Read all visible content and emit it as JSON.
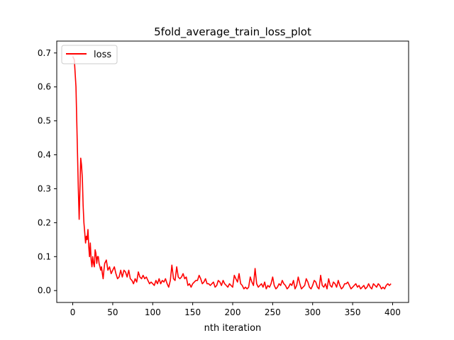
{
  "chart_data": {
    "type": "line",
    "title": "5fold_average_train_loss_plot",
    "xlabel": "nth iteration",
    "ylabel": "",
    "xlim": [
      -20,
      420
    ],
    "ylim": [
      -0.035,
      0.735
    ],
    "xticks": [
      0,
      50,
      100,
      150,
      200,
      250,
      300,
      350,
      400
    ],
    "yticks": [
      0.0,
      0.1,
      0.2,
      0.3,
      0.4,
      0.5,
      0.6,
      0.7
    ],
    "grid": false,
    "legend_position": "upper left",
    "series": [
      {
        "name": "loss",
        "color": "#ff0000",
        "x": [
          0,
          2,
          4,
          6,
          7,
          8,
          9,
          10,
          11,
          12,
          13,
          14,
          15,
          16,
          17,
          18,
          19,
          20,
          21,
          22,
          23,
          24,
          25,
          26,
          27,
          28,
          29,
          30,
          31,
          32,
          33,
          34,
          35,
          36,
          37,
          38,
          39,
          40,
          42,
          44,
          46,
          48,
          50,
          52,
          54,
          56,
          58,
          60,
          62,
          64,
          66,
          68,
          70,
          72,
          74,
          76,
          78,
          80,
          82,
          84,
          86,
          88,
          90,
          92,
          94,
          96,
          98,
          100,
          102,
          104,
          106,
          108,
          110,
          112,
          114,
          116,
          118,
          120,
          122,
          124,
          126,
          128,
          130,
          132,
          134,
          136,
          138,
          140,
          142,
          144,
          146,
          148,
          150,
          152,
          154,
          156,
          158,
          160,
          162,
          164,
          166,
          168,
          170,
          172,
          174,
          176,
          178,
          180,
          182,
          184,
          186,
          188,
          190,
          192,
          194,
          196,
          198,
          200,
          202,
          204,
          206,
          208,
          210,
          212,
          214,
          216,
          218,
          220,
          222,
          224,
          226,
          228,
          230,
          232,
          234,
          236,
          238,
          240,
          242,
          244,
          246,
          248,
          250,
          252,
          254,
          256,
          258,
          260,
          262,
          264,
          266,
          268,
          270,
          272,
          274,
          276,
          278,
          280,
          282,
          284,
          286,
          288,
          290,
          292,
          294,
          296,
          298,
          300,
          302,
          304,
          306,
          308,
          310,
          312,
          314,
          316,
          318,
          320,
          322,
          324,
          326,
          328,
          330,
          332,
          334,
          336,
          338,
          340,
          342,
          344,
          346,
          348,
          350,
          352,
          354,
          356,
          358,
          360,
          362,
          364,
          366,
          368,
          370,
          372,
          374,
          376,
          378,
          380,
          382,
          384,
          386,
          388,
          390,
          392,
          394,
          396,
          398
        ],
        "y": [
          0.69,
          0.68,
          0.6,
          0.4,
          0.3,
          0.21,
          0.3,
          0.39,
          0.37,
          0.33,
          0.25,
          0.2,
          0.17,
          0.14,
          0.16,
          0.15,
          0.18,
          0.13,
          0.1,
          0.14,
          0.09,
          0.07,
          0.1,
          0.08,
          0.07,
          0.12,
          0.11,
          0.08,
          0.1,
          0.1,
          0.08,
          0.07,
          0.06,
          0.07,
          0.05,
          0.035,
          0.06,
          0.08,
          0.09,
          0.06,
          0.07,
          0.05,
          0.06,
          0.07,
          0.05,
          0.035,
          0.04,
          0.06,
          0.04,
          0.06,
          0.055,
          0.04,
          0.06,
          0.035,
          0.03,
          0.02,
          0.035,
          0.025,
          0.055,
          0.04,
          0.035,
          0.045,
          0.035,
          0.04,
          0.03,
          0.02,
          0.025,
          0.02,
          0.015,
          0.03,
          0.02,
          0.035,
          0.02,
          0.03,
          0.025,
          0.035,
          0.02,
          0.01,
          0.03,
          0.075,
          0.035,
          0.03,
          0.07,
          0.04,
          0.035,
          0.04,
          0.05,
          0.035,
          0.04,
          0.015,
          0.02,
          0.01,
          0.02,
          0.025,
          0.03,
          0.03,
          0.045,
          0.035,
          0.02,
          0.025,
          0.035,
          0.02,
          0.02,
          0.015,
          0.02,
          0.025,
          0.01,
          0.015,
          0.03,
          0.025,
          0.015,
          0.03,
          0.02,
          0.015,
          0.01,
          0.02,
          0.015,
          0.01,
          0.045,
          0.035,
          0.025,
          0.05,
          0.02,
          0.015,
          0.005,
          0.01,
          0.005,
          0.01,
          0.04,
          0.025,
          0.015,
          0.065,
          0.02,
          0.01,
          0.015,
          0.02,
          0.01,
          0.025,
          0.005,
          0.015,
          0.01,
          0.02,
          0.04,
          0.015,
          0.005,
          0.01,
          0.02,
          0.015,
          0.03,
          0.02,
          0.015,
          0.005,
          0.01,
          0.02,
          0.015,
          0.03,
          0.005,
          0.015,
          0.04,
          0.02,
          0.005,
          0.01,
          0.015,
          0.035,
          0.025,
          0.01,
          0.005,
          0.015,
          0.03,
          0.025,
          0.01,
          0.005,
          0.045,
          0.015,
          0.01,
          0.02,
          0.005,
          0.035,
          0.015,
          0.01,
          0.025,
          0.02,
          0.01,
          0.03,
          0.015,
          0.005,
          0.01,
          0.02,
          0.02,
          0.025,
          0.015,
          0.005,
          0.01,
          0.015,
          0.02,
          0.01,
          0.015,
          0.005,
          0.01,
          0.015,
          0.005,
          0.01,
          0.02,
          0.01,
          0.005,
          0.02,
          0.015,
          0.01,
          0.02,
          0.015,
          0.005,
          0.01,
          0.005,
          0.015,
          0.02,
          0.015,
          0.02
        ]
      }
    ]
  }
}
